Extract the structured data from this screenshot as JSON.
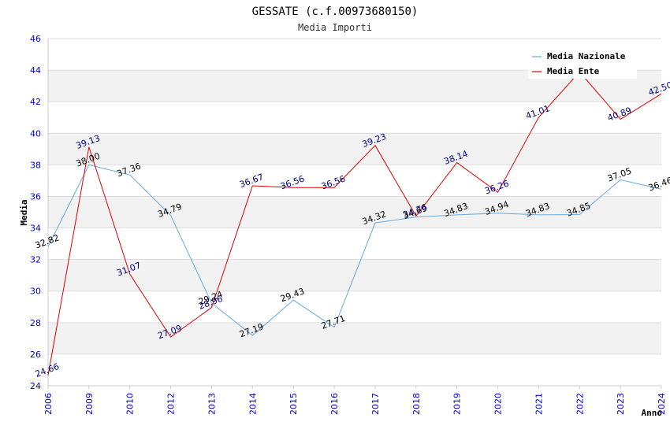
{
  "chart_data": {
    "type": "line",
    "title": "GESSATE (c.f.00973680150)",
    "subtitle": "Media Importi",
    "xlabel": "Anno",
    "ylabel": "Media",
    "ylim": [
      24,
      46
    ],
    "ytick_step": 2,
    "grid": true,
    "legend_position": "top-right",
    "categories": [
      "2006",
      "2009",
      "2010",
      "2012",
      "2013",
      "2014",
      "2015",
      "2016",
      "2017",
      "2018",
      "2019",
      "2020",
      "2021",
      "2022",
      "2023",
      "2024"
    ],
    "series": [
      {
        "name": "Media Nazionale",
        "color": "#66aadd",
        "label_color": "#000000",
        "values": [
          32.82,
          38.0,
          37.36,
          34.79,
          29.24,
          27.19,
          29.43,
          27.71,
          34.32,
          34.69,
          34.83,
          34.94,
          34.83,
          34.85,
          37.05,
          36.46
        ],
        "labels": [
          "32.82",
          "38.00",
          "37.36",
          "34.79",
          "29.24",
          "27.19",
          "29.43",
          "27.71",
          "34.32",
          "34.69",
          "34.83",
          "34.94",
          "34.83",
          "34.85",
          "37.05",
          "36.46"
        ]
      },
      {
        "name": "Media Ente",
        "color": "#dd0000",
        "label_color": "#000080",
        "values": [
          24.66,
          39.13,
          31.07,
          27.09,
          28.96,
          36.67,
          36.56,
          36.56,
          39.23,
          34.76,
          38.14,
          36.26,
          41.01,
          43.89,
          40.89,
          42.5
        ],
        "labels": [
          "24.66",
          "39.13",
          "31.07",
          "27.09",
          "28.96",
          "36.67",
          "36.56",
          "36.56",
          "39.23",
          "34.76",
          "38.14",
          "36.26",
          "41.01",
          "",
          "40.89",
          "42.50"
        ]
      }
    ]
  }
}
